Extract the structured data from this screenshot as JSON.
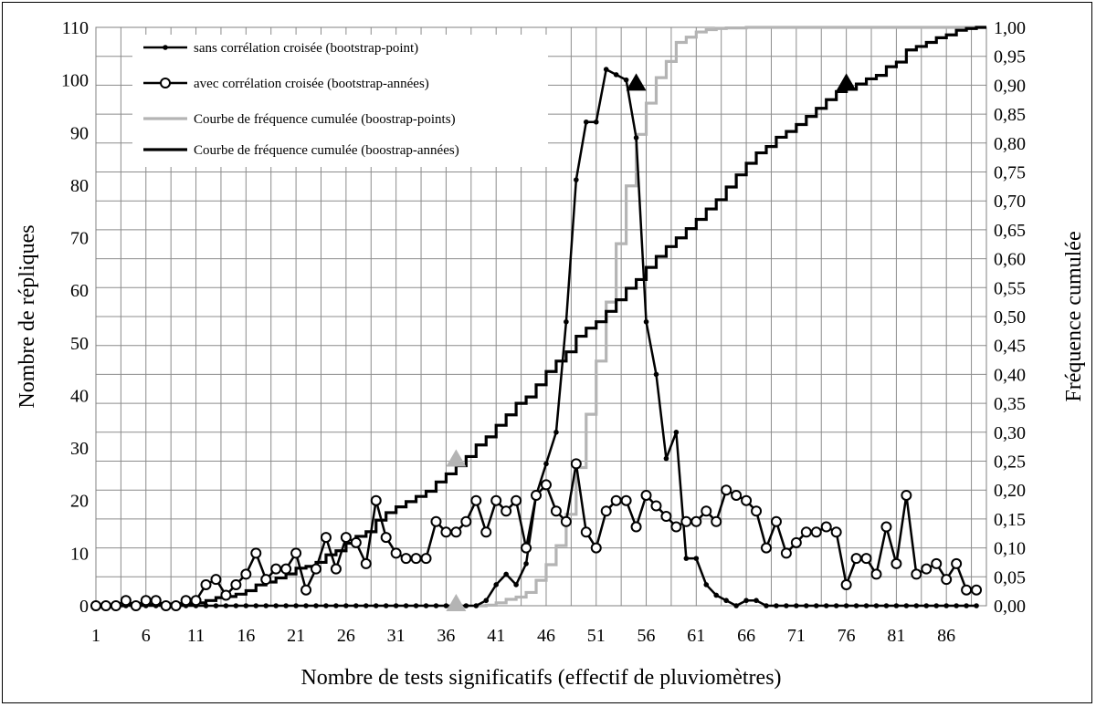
{
  "chart_data": {
    "type": "line",
    "xlabel": "Nombre de tests significatifs (effectif de pluviomètres)",
    "ylabel": "Nombre de répliques",
    "y2label": "Fréquence cumulée",
    "xlim": [
      1,
      90
    ],
    "ylim": [
      0,
      110
    ],
    "y2lim": [
      0,
      1
    ],
    "x_ticks": [
      "1",
      "6",
      "11",
      "16",
      "21",
      "26",
      "31",
      "36",
      "41",
      "46",
      "51",
      "56",
      "61",
      "66",
      "71",
      "76",
      "81",
      "86"
    ],
    "y_ticks": [
      "0",
      "10",
      "20",
      "30",
      "40",
      "50",
      "60",
      "70",
      "80",
      "90",
      "100",
      "110"
    ],
    "y2_ticks": [
      "0,00",
      "0,05",
      "0,10",
      "0,15",
      "0,20",
      "0,25",
      "0,30",
      "0,35",
      "0,40",
      "0,45",
      "0,50",
      "0,55",
      "0,60",
      "0,65",
      "0,70",
      "0,75",
      "0,80",
      "0,85",
      "0,90",
      "0,95",
      "1,00"
    ],
    "grid": true,
    "legend_position": "top-left",
    "series": [
      {
        "name": "sans corrélation croisée (bootstrap-point)",
        "axis": "left",
        "style": "line-dot",
        "color": "#000000",
        "x": [
          1,
          2,
          3,
          4,
          5,
          6,
          7,
          8,
          9,
          10,
          11,
          12,
          13,
          14,
          15,
          16,
          17,
          18,
          19,
          20,
          21,
          22,
          23,
          24,
          25,
          26,
          27,
          28,
          29,
          30,
          31,
          32,
          33,
          34,
          35,
          36,
          37,
          38,
          39,
          40,
          41,
          42,
          43,
          44,
          45,
          46,
          47,
          48,
          49,
          50,
          51,
          52,
          53,
          54,
          55,
          56,
          57,
          58,
          59,
          60,
          61,
          62,
          63,
          64,
          65,
          66,
          67,
          68,
          69,
          70,
          71,
          72,
          73,
          74,
          75,
          76,
          77,
          78,
          79,
          80,
          81,
          82,
          83,
          84,
          85,
          86,
          87,
          88,
          89
        ],
        "y": [
          0,
          0,
          0,
          0,
          0,
          0,
          0,
          0,
          0,
          0,
          0,
          0,
          0,
          0,
          0,
          0,
          0,
          0,
          0,
          0,
          0,
          0,
          0,
          0,
          0,
          0,
          0,
          0,
          0,
          0,
          0,
          0,
          0,
          0,
          0,
          0,
          0,
          0,
          0,
          1,
          4,
          6,
          4,
          8,
          21,
          27,
          33,
          54,
          81,
          92,
          92,
          102,
          101,
          100,
          89,
          54,
          44,
          28,
          33,
          9,
          9,
          4,
          2,
          1,
          0,
          1,
          1,
          0,
          0,
          0,
          0,
          0,
          0,
          0,
          0,
          0,
          0,
          0,
          0,
          0,
          0,
          0,
          0,
          0,
          0,
          0,
          0,
          0,
          0
        ]
      },
      {
        "name": "avec corrélation croisée (bootstrap-années)",
        "axis": "left",
        "style": "line-circle",
        "color": "#000000",
        "x": [
          1,
          2,
          3,
          4,
          5,
          6,
          7,
          8,
          9,
          10,
          11,
          12,
          13,
          14,
          15,
          16,
          17,
          18,
          19,
          20,
          21,
          22,
          23,
          24,
          25,
          26,
          27,
          28,
          29,
          30,
          31,
          32,
          33,
          34,
          35,
          36,
          37,
          38,
          39,
          40,
          41,
          42,
          43,
          44,
          45,
          46,
          47,
          48,
          49,
          50,
          51,
          52,
          53,
          54,
          55,
          56,
          57,
          58,
          59,
          60,
          61,
          62,
          63,
          64,
          65,
          66,
          67,
          68,
          69,
          70,
          71,
          72,
          73,
          74,
          75,
          76,
          77,
          78,
          79,
          80,
          81,
          82,
          83,
          84,
          85,
          86,
          87,
          88,
          89
        ],
        "y": [
          0,
          0,
          0,
          1,
          0,
          1,
          1,
          0,
          0,
          1,
          1,
          4,
          5,
          2,
          4,
          6,
          10,
          5,
          7,
          7,
          10,
          3,
          7,
          13,
          7,
          13,
          12,
          8,
          20,
          13,
          10,
          9,
          9,
          9,
          16,
          14,
          14,
          16,
          20,
          14,
          20,
          18,
          20,
          11,
          21,
          23,
          18,
          16,
          27,
          14,
          11,
          18,
          20,
          20,
          15,
          21,
          19,
          17,
          15,
          16,
          16,
          18,
          16,
          22,
          21,
          20,
          18,
          11,
          16,
          10,
          12,
          14,
          14,
          15,
          14,
          4,
          9,
          9,
          6,
          15,
          8,
          21,
          6,
          7,
          8,
          5,
          8,
          3,
          3
        ]
      },
      {
        "name": "Courbe de fréquence cumulée (boostrap-points)",
        "axis": "right",
        "style": "step",
        "color": "#b4b4b4",
        "x": [
          39,
          40,
          41,
          42,
          43,
          44,
          45,
          46,
          47,
          48,
          49,
          50,
          51,
          52,
          53,
          54,
          55,
          56,
          57,
          58,
          59,
          60,
          61,
          62,
          63,
          64,
          65,
          66,
          67,
          68,
          69,
          70,
          71,
          72,
          73,
          74,
          75,
          76,
          77,
          78,
          79,
          80,
          81,
          82,
          83,
          84,
          85,
          86,
          87,
          88,
          89
        ],
        "y": [
          0.0,
          0.001,
          0.005,
          0.011,
          0.015,
          0.023,
          0.044,
          0.071,
          0.104,
          0.158,
          0.239,
          0.331,
          0.423,
          0.525,
          0.626,
          0.726,
          0.815,
          0.869,
          0.913,
          0.941,
          0.974,
          0.983,
          0.992,
          0.996,
          0.998,
          0.999,
          0.999,
          1.0,
          1.0,
          1.0,
          1.0,
          1.0,
          1.0,
          1.0,
          1.0,
          1.0,
          1.0,
          1.0,
          1.0,
          1.0,
          1.0,
          1.0,
          1.0,
          1.0,
          1.0,
          1.0,
          1.0,
          1.0,
          1.0,
          1.0,
          1.0
        ]
      },
      {
        "name": "Courbe de fréquence cumulée (boostrap-années)",
        "axis": "right",
        "style": "step",
        "color": "#000000",
        "x": [
          1,
          2,
          3,
          4,
          5,
          6,
          7,
          8,
          9,
          10,
          11,
          12,
          13,
          14,
          15,
          16,
          17,
          18,
          19,
          20,
          21,
          22,
          23,
          24,
          25,
          26,
          27,
          28,
          29,
          30,
          31,
          32,
          33,
          34,
          35,
          36,
          37,
          38,
          39,
          40,
          41,
          42,
          43,
          44,
          45,
          46,
          47,
          48,
          49,
          50,
          51,
          52,
          53,
          54,
          55,
          56,
          57,
          58,
          59,
          60,
          61,
          62,
          63,
          64,
          65,
          66,
          67,
          68,
          69,
          70,
          71,
          72,
          73,
          74,
          75,
          76,
          77,
          78,
          79,
          80,
          81,
          82,
          83,
          84,
          85,
          86,
          87,
          88,
          89
        ],
        "y": [
          0.0,
          0.0,
          0.0,
          0.001,
          0.001,
          0.002,
          0.003,
          0.003,
          0.003,
          0.004,
          0.005,
          0.009,
          0.014,
          0.016,
          0.02,
          0.026,
          0.036,
          0.041,
          0.048,
          0.055,
          0.065,
          0.068,
          0.075,
          0.088,
          0.095,
          0.108,
          0.12,
          0.128,
          0.148,
          0.161,
          0.171,
          0.18,
          0.189,
          0.198,
          0.214,
          0.228,
          0.242,
          0.258,
          0.278,
          0.292,
          0.312,
          0.33,
          0.35,
          0.361,
          0.382,
          0.405,
          0.423,
          0.439,
          0.466,
          0.48,
          0.491,
          0.509,
          0.529,
          0.549,
          0.564,
          0.585,
          0.604,
          0.621,
          0.636,
          0.652,
          0.668,
          0.686,
          0.702,
          0.724,
          0.745,
          0.765,
          0.783,
          0.794,
          0.81,
          0.82,
          0.832,
          0.846,
          0.86,
          0.875,
          0.889,
          0.893,
          0.902,
          0.911,
          0.917,
          0.932,
          0.94,
          0.961,
          0.967,
          0.974,
          0.982,
          0.987,
          0.995,
          0.998,
          1.0
        ]
      }
    ],
    "markers": [
      {
        "x": 37,
        "y": 0.0,
        "axis": "right",
        "shape": "triangle",
        "color": "#b4b4b4"
      },
      {
        "x": 37,
        "y": 0.25,
        "axis": "right",
        "shape": "triangle",
        "color": "#b4b4b4"
      },
      {
        "x": 55,
        "y": 0.9,
        "axis": "right",
        "shape": "triangle",
        "color": "#000000"
      },
      {
        "x": 76,
        "y": 0.9,
        "axis": "right",
        "shape": "triangle",
        "color": "#000000"
      }
    ]
  }
}
